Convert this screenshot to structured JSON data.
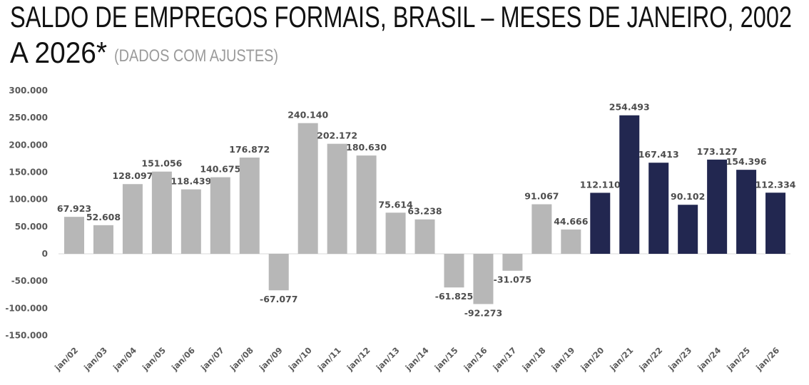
{
  "chart_data": {
    "type": "bar",
    "title_line1": "SALDO DE EMPREGOS FORMAIS, BRASIL – MESES DE JANEIRO, 2002",
    "title_line2": "A 2026*",
    "subtitle": "(DADOS COM AJUSTES)",
    "xlabel": "",
    "ylabel": "",
    "ylim": [
      -150000,
      300000
    ],
    "yticks": [
      300000,
      250000,
      200000,
      150000,
      100000,
      50000,
      0,
      -50000,
      -100000,
      -150000
    ],
    "ytick_labels": [
      "300.000",
      "250.000",
      "200.000",
      "150.000",
      "100.000",
      "50.000",
      "0",
      "-50.000",
      "-100.000",
      "-150.000"
    ],
    "grid": false,
    "categories": [
      "jan/02",
      "jan/03",
      "jan/04",
      "jan/05",
      "jan/06",
      "jan/07",
      "jan/08",
      "jan/09",
      "jan/10",
      "jan/11",
      "jan/12",
      "jan/13",
      "jan/14",
      "jan/15",
      "jan/16",
      "jan/17",
      "jan/18",
      "jan/19",
      "jan/20",
      "jan/21",
      "jan/22",
      "jan/23",
      "jan/24",
      "jan/25",
      "jan/26"
    ],
    "values": [
      67923,
      52608,
      128097,
      151056,
      118439,
      140675,
      176872,
      -67077,
      240140,
      202172,
      180630,
      75614,
      63238,
      -61825,
      -92273,
      -31075,
      91067,
      44666,
      112110,
      254493,
      167413,
      90102,
      173127,
      154396,
      112334
    ],
    "data_labels": [
      "67.923",
      "52.608",
      "128.097",
      "151.056",
      "118.439",
      "140.675",
      "176.872",
      "-67.077",
      "240.140",
      "202.172",
      "180.630",
      "75.614",
      "63.238",
      "-61.825",
      "-92.273",
      "-31.075",
      "91.067",
      "44.666",
      "112.110",
      "254.493",
      "167.413",
      "90.102",
      "173.127",
      "154.396",
      "112.334"
    ],
    "highlight_from": "jan/20",
    "colors": {
      "base": "#b7b7b7",
      "highlight": "#222750",
      "label": "#4d4d4d",
      "axis": "#d9d9d9"
    }
  }
}
